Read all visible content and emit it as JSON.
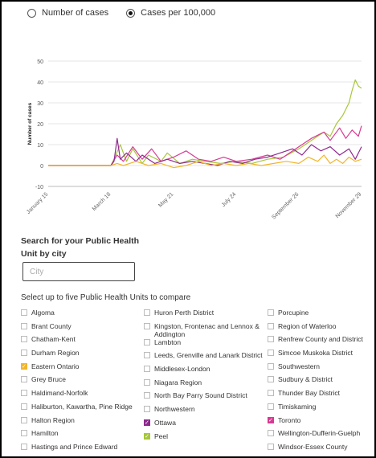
{
  "radios": [
    {
      "label": "Number of cases",
      "selected": false
    },
    {
      "label": "Cases per 100,000",
      "selected": true
    }
  ],
  "search": {
    "title": "Search for your Public Health Unit by city",
    "placeholder": "City"
  },
  "compare_title": "Select up to five Public Health Units to compare",
  "columns": [
    [
      {
        "label": "Algoma",
        "checked": false
      },
      {
        "label": "Brant County",
        "checked": false
      },
      {
        "label": "Chatham-Kent",
        "checked": false
      },
      {
        "label": "Durham Region",
        "checked": false
      },
      {
        "label": "Eastern Ontario",
        "checked": true,
        "color": "#f2b52b"
      },
      {
        "label": "Grey Bruce",
        "checked": false
      },
      {
        "label": "Haldimand-Norfolk",
        "checked": false
      },
      {
        "label": "Haliburton, Kawartha, Pine Ridge",
        "checked": false
      },
      {
        "label": "Halton Region",
        "checked": false
      },
      {
        "label": "Hamilton",
        "checked": false
      },
      {
        "label": "Hastings and Prince Edward",
        "checked": false
      }
    ],
    [
      {
        "label": "Huron Perth District",
        "checked": false
      },
      {
        "label": "Kingston, Frontenac and Lennox & Addington",
        "checked": false
      },
      {
        "label": "Lambton",
        "checked": false
      },
      {
        "label": "Leeds, Grenville and Lanark District",
        "checked": false
      },
      {
        "label": "Middlesex-London",
        "checked": false
      },
      {
        "label": "Niagara Region",
        "checked": false
      },
      {
        "label": "North Bay Parry Sound District",
        "checked": false
      },
      {
        "label": "Northwestern",
        "checked": false
      },
      {
        "label": "Ottawa",
        "checked": true,
        "color": "#8e2a8f"
      },
      {
        "label": "Peel",
        "checked": true,
        "color": "#a6c73a"
      }
    ],
    [
      {
        "label": "Porcupine",
        "checked": false
      },
      {
        "label": "Region of Waterloo",
        "checked": false
      },
      {
        "label": "Renfrew County and District",
        "checked": false
      },
      {
        "label": "Simcoe Muskoka District",
        "checked": false
      },
      {
        "label": "Southwestern",
        "checked": false
      },
      {
        "label": "Sudbury & District",
        "checked": false
      },
      {
        "label": "Thunder Bay District",
        "checked": false
      },
      {
        "label": "Timiskaming",
        "checked": false
      },
      {
        "label": "Toronto",
        "checked": true,
        "color": "#d63a93"
      },
      {
        "label": "Wellington-Dufferin-Guelph",
        "checked": false
      },
      {
        "label": "Windsor-Essex County",
        "checked": false
      }
    ]
  ],
  "chart_data": {
    "type": "line",
    "ylabel": "Number of cases",
    "ylim": [
      -10,
      50
    ],
    "yticks": [
      -10,
      0,
      10,
      20,
      30,
      40,
      50
    ],
    "x_tick_labels": [
      "January 15",
      "March 18",
      "May 21",
      "July 24",
      "September 26",
      "November 29"
    ],
    "x_tick_positions": [
      0,
      0.2,
      0.4,
      0.6,
      0.8,
      1.0
    ],
    "grid": true,
    "series": [
      {
        "name": "Peel",
        "color": "#a6c73a",
        "points": [
          [
            0,
            0
          ],
          [
            0.2,
            0
          ],
          [
            0.21,
            3
          ],
          [
            0.23,
            10
          ],
          [
            0.25,
            2
          ],
          [
            0.27,
            8
          ],
          [
            0.3,
            1
          ],
          [
            0.32,
            5
          ],
          [
            0.36,
            2
          ],
          [
            0.38,
            6
          ],
          [
            0.42,
            1
          ],
          [
            0.46,
            3
          ],
          [
            0.5,
            2
          ],
          [
            0.55,
            1
          ],
          [
            0.6,
            2
          ],
          [
            0.65,
            1
          ],
          [
            0.7,
            3
          ],
          [
            0.75,
            4
          ],
          [
            0.8,
            8
          ],
          [
            0.84,
            12
          ],
          [
            0.88,
            16
          ],
          [
            0.9,
            14
          ],
          [
            0.92,
            20
          ],
          [
            0.94,
            24
          ],
          [
            0.96,
            30
          ],
          [
            0.97,
            36
          ],
          [
            0.98,
            41
          ],
          [
            0.99,
            38
          ],
          [
            1.0,
            37
          ]
        ]
      },
      {
        "name": "Toronto",
        "color": "#d63a93",
        "points": [
          [
            0,
            0
          ],
          [
            0.2,
            0
          ],
          [
            0.22,
            5
          ],
          [
            0.24,
            2
          ],
          [
            0.27,
            9
          ],
          [
            0.3,
            3
          ],
          [
            0.33,
            8
          ],
          [
            0.36,
            2
          ],
          [
            0.4,
            4
          ],
          [
            0.44,
            7
          ],
          [
            0.48,
            3
          ],
          [
            0.52,
            2
          ],
          [
            0.56,
            4
          ],
          [
            0.6,
            2
          ],
          [
            0.65,
            3
          ],
          [
            0.7,
            5
          ],
          [
            0.74,
            3
          ],
          [
            0.8,
            9
          ],
          [
            0.84,
            13
          ],
          [
            0.88,
            16
          ],
          [
            0.9,
            12
          ],
          [
            0.93,
            18
          ],
          [
            0.95,
            13
          ],
          [
            0.97,
            17
          ],
          [
            0.99,
            14
          ],
          [
            1.0,
            19
          ]
        ]
      },
      {
        "name": "Ottawa",
        "color": "#8e2a8f",
        "points": [
          [
            0,
            0
          ],
          [
            0.2,
            0
          ],
          [
            0.21,
            2
          ],
          [
            0.22,
            13
          ],
          [
            0.23,
            3
          ],
          [
            0.25,
            6
          ],
          [
            0.28,
            2
          ],
          [
            0.3,
            5
          ],
          [
            0.34,
            1
          ],
          [
            0.38,
            3
          ],
          [
            0.42,
            1
          ],
          [
            0.46,
            2
          ],
          [
            0.5,
            1
          ],
          [
            0.54,
            0
          ],
          [
            0.58,
            2
          ],
          [
            0.62,
            1
          ],
          [
            0.66,
            3
          ],
          [
            0.7,
            4
          ],
          [
            0.74,
            6
          ],
          [
            0.78,
            8
          ],
          [
            0.81,
            5
          ],
          [
            0.84,
            10
          ],
          [
            0.87,
            7
          ],
          [
            0.9,
            9
          ],
          [
            0.93,
            5
          ],
          [
            0.96,
            8
          ],
          [
            0.98,
            3
          ],
          [
            1.0,
            9
          ]
        ]
      },
      {
        "name": "Eastern Ontario",
        "color": "#f2b52b",
        "points": [
          [
            0,
            0
          ],
          [
            0.2,
            0
          ],
          [
            0.22,
            1
          ],
          [
            0.24,
            0
          ],
          [
            0.28,
            2
          ],
          [
            0.32,
            0
          ],
          [
            0.36,
            1
          ],
          [
            0.4,
            -1
          ],
          [
            0.44,
            0
          ],
          [
            0.48,
            2
          ],
          [
            0.52,
            0
          ],
          [
            0.56,
            1
          ],
          [
            0.6,
            0
          ],
          [
            0.64,
            1
          ],
          [
            0.68,
            0
          ],
          [
            0.72,
            1
          ],
          [
            0.76,
            2
          ],
          [
            0.8,
            1
          ],
          [
            0.83,
            4
          ],
          [
            0.86,
            2
          ],
          [
            0.88,
            5
          ],
          [
            0.9,
            1
          ],
          [
            0.92,
            3
          ],
          [
            0.94,
            1
          ],
          [
            0.96,
            4
          ],
          [
            0.98,
            2
          ],
          [
            1.0,
            3
          ]
        ]
      }
    ]
  }
}
